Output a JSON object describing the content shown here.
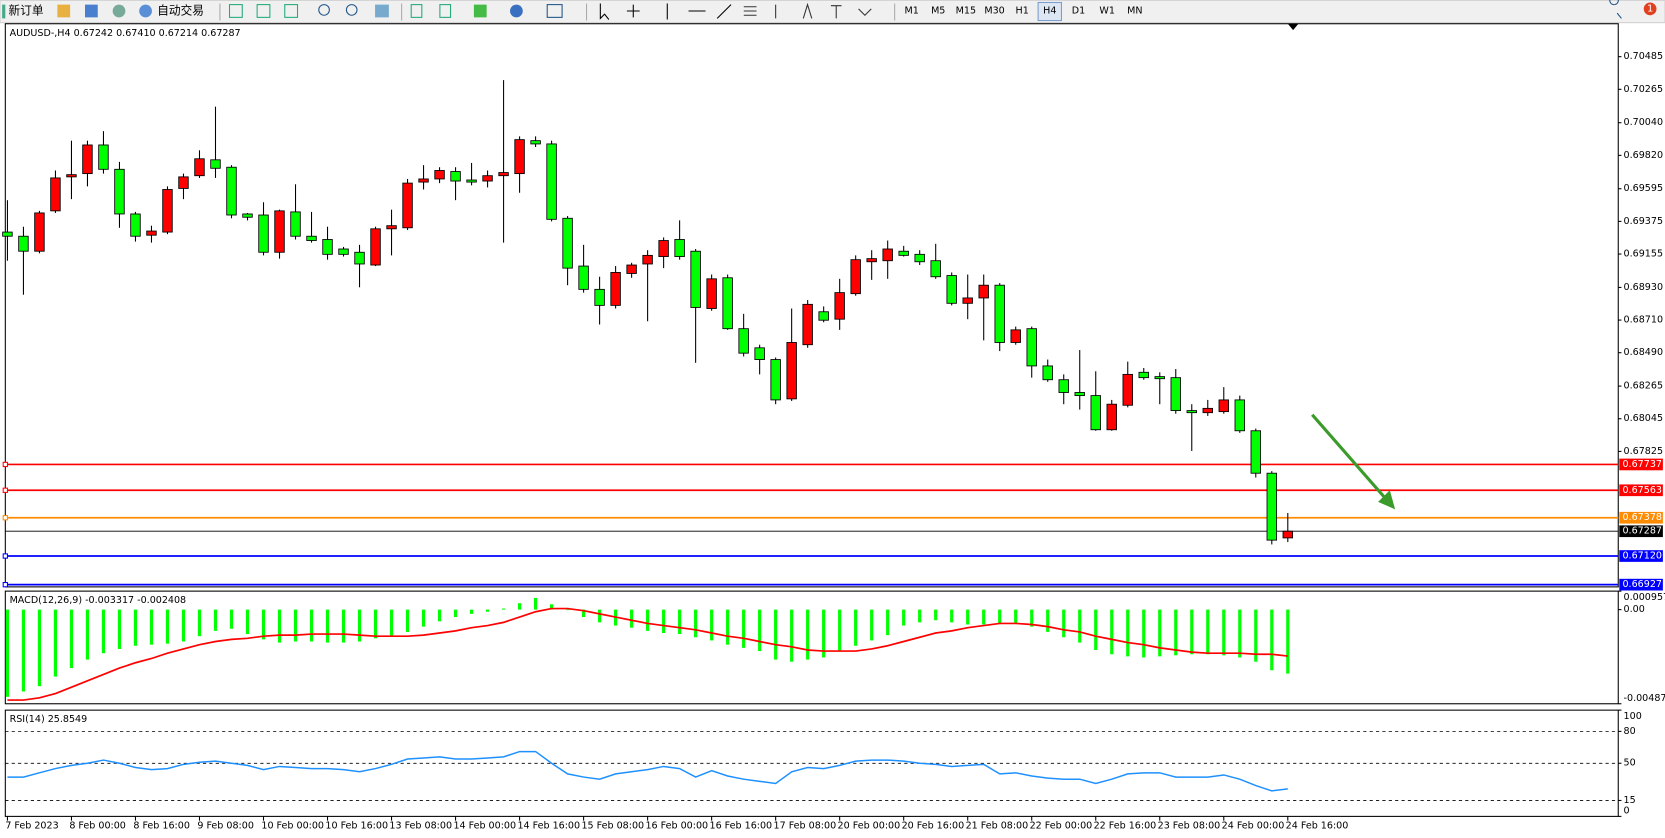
{
  "toolbar": {
    "new_order": "新订单",
    "auto_trade": "自动交易",
    "timeframes": [
      "M1",
      "M5",
      "M15",
      "M30",
      "H1",
      "H4",
      "D1",
      "W1",
      "MN"
    ],
    "active_timeframe": "H4",
    "badge": 1
  },
  "chart_data": [
    {
      "type": "candlestick",
      "title": "AUDUSD-,H4 0.67242 0.67410 0.67214 0.67287",
      "categories": [
        "7 Feb 2023",
        null,
        null,
        null,
        "8 Feb 00:00",
        null,
        null,
        null,
        "8 Feb 16:00",
        null,
        null,
        null,
        "9 Feb 08:00",
        null,
        null,
        null,
        "10 Feb 00:00",
        null,
        null,
        null,
        "10 Feb 16:00",
        null,
        null,
        null,
        "13 Feb 08:00",
        null,
        null,
        null,
        "14 Feb 00:00",
        null,
        null,
        null,
        "14 Feb 16:00",
        null,
        null,
        null,
        "15 Feb 08:00",
        null,
        null,
        null,
        "16 Feb 00:00",
        null,
        null,
        null,
        "16 Feb 16:00",
        null,
        null,
        null,
        "17 Feb 08:00",
        null,
        null,
        null,
        "20 Feb 00:00",
        null,
        null,
        null,
        "20 Feb 16:00",
        null,
        null,
        null,
        "21 Feb 08:00",
        null,
        null,
        null,
        "22 Feb 00:00",
        null,
        null,
        null,
        "22 Feb 16:00",
        null,
        null,
        null,
        "23 Feb 08:00",
        null,
        null,
        null,
        "24 Feb 00:00",
        null,
        null,
        null,
        "24 Feb 16:00"
      ],
      "open": [
        0.69303,
        0.69275,
        0.69174,
        0.69446,
        0.69675,
        0.69697,
        0.6989,
        0.69726,
        0.69425,
        0.69282,
        0.69303,
        0.69597,
        0.69683,
        0.6979,
        0.6974,
        0.69425,
        0.69418,
        0.69167,
        0.69439,
        0.69275,
        0.69253,
        0.69189,
        0.69167,
        0.69081,
        0.69325,
        0.69332,
        0.6964,
        0.69661,
        0.69711,
        0.69654,
        0.69647,
        0.69683,
        0.69697,
        0.69919,
        0.69897,
        0.69396,
        0.69074,
        0.68917,
        0.68809,
        0.69024,
        0.69088,
        0.69138,
        0.69253,
        0.69174,
        0.68788,
        0.68995,
        0.68652,
        0.68523,
        0.68444,
        0.68179,
        0.68544,
        0.68766,
        0.68716,
        0.68888,
        0.69103,
        0.6911,
        0.69174,
        0.69153,
        0.6911,
        0.6901,
        0.68823,
        0.68859,
        0.68945,
        0.68559,
        0.68652,
        0.68401,
        0.68308,
        0.68222,
        0.68201,
        0.67971,
        0.68136,
        0.68358,
        0.68329,
        0.68322,
        0.681,
        0.68086,
        0.68093,
        0.68172,
        0.67964,
        0.67678,
        0.67242
      ],
      "high": [
        0.69518,
        0.69339,
        0.69446,
        0.69718,
        0.69919,
        0.69919,
        0.69983,
        0.69776,
        0.69439,
        0.69346,
        0.69611,
        0.69697,
        0.69854,
        0.70148,
        0.69754,
        0.69432,
        0.69504,
        0.69454,
        0.69625,
        0.69439,
        0.69339,
        0.69203,
        0.69217,
        0.69339,
        0.69454,
        0.69661,
        0.69754,
        0.6974,
        0.6974,
        0.69769,
        0.69718,
        0.70327,
        0.69948,
        0.69948,
        0.69919,
        0.69411,
        0.69217,
        0.69002,
        0.69074,
        0.69096,
        0.69181,
        0.69267,
        0.69382,
        0.69189,
        0.69017,
        0.69017,
        0.68752,
        0.68544,
        0.68458,
        0.68788,
        0.68845,
        0.68802,
        0.68988,
        0.69146,
        0.69181,
        0.69246,
        0.6921,
        0.69181,
        0.69224,
        0.69031,
        0.69017,
        0.69017,
        0.68959,
        0.68666,
        0.68666,
        0.68444,
        0.68344,
        0.68508,
        0.68365,
        0.68172,
        0.6843,
        0.68387,
        0.68358,
        0.6838,
        0.68143,
        0.68172,
        0.68258,
        0.68201,
        0.67979,
        0.67692,
        0.6741
      ],
      "low": [
        0.6911,
        0.68881,
        0.6916,
        0.69432,
        0.69525,
        0.69611,
        0.69697,
        0.69332,
        0.69239,
        0.69232,
        0.69289,
        0.69525,
        0.69668,
        0.69668,
        0.69396,
        0.69382,
        0.69146,
        0.69124,
        0.69253,
        0.69232,
        0.69117,
        0.69138,
        0.68931,
        0.69074,
        0.69146,
        0.69317,
        0.6959,
        0.69633,
        0.69518,
        0.69618,
        0.69604,
        0.69232,
        0.69568,
        0.69876,
        0.69375,
        0.68945,
        0.68895,
        0.6868,
        0.68788,
        0.68995,
        0.68702,
        0.6906,
        0.69117,
        0.68422,
        0.68773,
        0.68644,
        0.68465,
        0.68344,
        0.68143,
        0.68165,
        0.68523,
        0.68695,
        0.68644,
        0.68874,
        0.68981,
        0.68988,
        0.69138,
        0.69081,
        0.68988,
        0.68809,
        0.68716,
        0.68573,
        0.68501,
        0.68544,
        0.68322,
        0.68294,
        0.68143,
        0.68107,
        0.67964,
        0.67964,
        0.68122,
        0.68308,
        0.68143,
        0.68079,
        0.67828,
        0.68064,
        0.68079,
        0.6795,
        0.67649,
        0.67198,
        0.67214
      ],
      "close": [
        0.69275,
        0.69174,
        0.69432,
        0.69668,
        0.6969,
        0.6989,
        0.69726,
        0.69425,
        0.69275,
        0.6931,
        0.6959,
        0.69675,
        0.69797,
        0.69733,
        0.69418,
        0.69403,
        0.69167,
        0.69446,
        0.69275,
        0.69246,
        0.69153,
        0.69153,
        0.69088,
        0.69325,
        0.69346,
        0.69633,
        0.69661,
        0.69718,
        0.69647,
        0.6964,
        0.69683,
        0.69704,
        0.69926,
        0.69897,
        0.69389,
        0.6906,
        0.68917,
        0.68809,
        0.69031,
        0.69081,
        0.69146,
        0.69246,
        0.69138,
        0.68795,
        0.68988,
        0.68652,
        0.68487,
        0.68444,
        0.68172,
        0.68559,
        0.68816,
        0.68709,
        0.68895,
        0.69117,
        0.69124,
        0.69189,
        0.69146,
        0.69103,
        0.69002,
        0.68823,
        0.68859,
        0.68945,
        0.68559,
        0.68644,
        0.68401,
        0.68308,
        0.68222,
        0.68201,
        0.67971,
        0.68143,
        0.68344,
        0.68322,
        0.68315,
        0.681,
        0.68086,
        0.68115,
        0.68172,
        0.67964,
        0.67678,
        0.67227,
        0.67287
      ],
      "up_color": "#ff0000",
      "down_color": "#00ff00",
      "ylim": [
        0.66912,
        0.70707
      ],
      "yticks": [
        0.70485,
        0.70265,
        {
          "value": 0.7004,
          "label": "0.70040"
        },
        {
          "value": 0.6982,
          "label": "0.69820"
        },
        0.69595,
        0.69375,
        0.69155,
        {
          "value": 0.6893,
          "label": "0.68930"
        },
        {
          "value": 0.6871,
          "label": "0.68710"
        },
        {
          "value": 0.6849,
          "label": "0.68490"
        },
        0.68265,
        0.68045,
        0.67825
      ],
      "hlines": [
        {
          "value": 0.67737,
          "color": "#ff0000"
        },
        {
          "value": 0.67563,
          "color": "#ff0000"
        },
        {
          "value": 0.67378,
          "color": "#ff8c00"
        },
        {
          "value": 0.67287,
          "color": "#000000"
        },
        {
          "value": 0.6712,
          "label": "0.67120",
          "color": "#0000ff"
        },
        {
          "value": 0.66927,
          "color": "#0000ff"
        }
      ]
    },
    {
      "type": "macd",
      "title": "MACD(12,26,9) -0.003317 -0.002408",
      "series": [
        {
          "type": "bar",
          "color": "#00ff00",
          "values": [
            -0.004518,
            -0.004243,
            -0.003967,
            -0.003471,
            -0.003031,
            -0.00259,
            -0.002259,
            -0.002039,
            -0.001873,
            -0.001818,
            -0.001763,
            -0.001653,
            -0.001378,
            -0.001102,
            -0.000992,
            -0.001267,
            -0.001543,
            -0.001708,
            -0.001653,
            -0.001653,
            -0.001708,
            -0.001708,
            -0.001653,
            -0.001488,
            -0.001378,
            -0.001157,
            -0.000882,
            -0.000606,
            -0.000386,
            -0.00022,
            -0.00011,
            5.5e-05,
            0.000331,
            0.000606,
            0.000276,
            -2.8e-05,
            -0.000386,
            -0.000661,
            -0.000827,
            -0.000937,
            -0.001102,
            -0.001212,
            -0.001267,
            -0.001433,
            -0.001598,
            -0.001818,
            -0.001984,
            -0.002149,
            -0.00259,
            -0.0027,
            -0.00259,
            -0.00248,
            -0.002149,
            -0.001873,
            -0.001598,
            -0.001322,
            -0.000827,
            -0.000661,
            -0.000551,
            -0.000661,
            -0.000771,
            -0.000771,
            -0.000716,
            -0.000716,
            -0.000882,
            -0.001157,
            -0.001433,
            -0.001708,
            -0.002094,
            -0.002314,
            -0.002424,
            -0.00248,
            -0.002424,
            -0.002369,
            -0.002314,
            -0.002314,
            -0.002369,
            -0.00248,
            -0.0027,
            -0.003141,
            -0.003317
          ]
        },
        {
          "type": "line",
          "color": "#ff0000",
          "values": [
            -0.004684,
            -0.004684,
            -0.004573,
            -0.004353,
            -0.004022,
            -0.003692,
            -0.003361,
            -0.003031,
            -0.002755,
            -0.002535,
            -0.002259,
            -0.002039,
            -0.001818,
            -0.001653,
            -0.001543,
            -0.001488,
            -0.001378,
            -0.001322,
            -0.001322,
            -0.001267,
            -0.001267,
            -0.001267,
            -0.001322,
            -0.001378,
            -0.001378,
            -0.001378,
            -0.001322,
            -0.001212,
            -0.001102,
            -0.000937,
            -0.000827,
            -0.000661,
            -0.000386,
            -0.00011,
            5.5e-05,
            5.5e-05,
            -5.5e-05,
            -0.00022,
            -0.000386,
            -0.000551,
            -0.000716,
            -0.000827,
            -0.000937,
            -0.001047,
            -0.001212,
            -0.001378,
            -0.001488,
            -0.001653,
            -0.001818,
            -0.001929,
            -0.002094,
            -0.002149,
            -0.002149,
            -0.002149,
            -0.002039,
            -0.001873,
            -0.001653,
            -0.001433,
            -0.001212,
            -0.001102,
            -0.000937,
            -0.000827,
            -0.000716,
            -0.000716,
            -0.000771,
            -0.000882,
            -0.001047,
            -0.001157,
            -0.001378,
            -0.001543,
            -0.001708,
            -0.001818,
            -0.001984,
            -0.002094,
            -0.002204,
            -0.002259,
            -0.002259,
            -0.002259,
            -0.002314,
            -0.002314,
            -0.002408
          ]
        }
      ],
      "ylim": [
        -0.004879,
        0.000957
      ],
      "yticks": [
        0.000957,
        {
          "value": 0,
          "label": "0.00"
        },
        -0.004879
      ]
    },
    {
      "type": "line",
      "title": "RSI(14) 25.8549",
      "color": "#1e90ff",
      "values": [
        37,
        37,
        41,
        45,
        48,
        50,
        53,
        50,
        46,
        44,
        45,
        49,
        51,
        52,
        50,
        48,
        44,
        47,
        46,
        45,
        45,
        44,
        42,
        45,
        49,
        54,
        55,
        56,
        54,
        54,
        55,
        56,
        61,
        61,
        50,
        40,
        37,
        35,
        40,
        42,
        44,
        47,
        45,
        37,
        43,
        38,
        35,
        33,
        31,
        42,
        46,
        45,
        48,
        52,
        53,
        53,
        52,
        50,
        49,
        47,
        48,
        49,
        40,
        41,
        38,
        36,
        35,
        35,
        31,
        35,
        40,
        41,
        41,
        37,
        37,
        37,
        39,
        35,
        29,
        24,
        25.8549
      ],
      "ylim": [
        0,
        100
      ],
      "yticks": [
        100,
        80,
        50,
        15,
        0
      ],
      "levels": [
        80,
        50,
        15
      ]
    }
  ]
}
